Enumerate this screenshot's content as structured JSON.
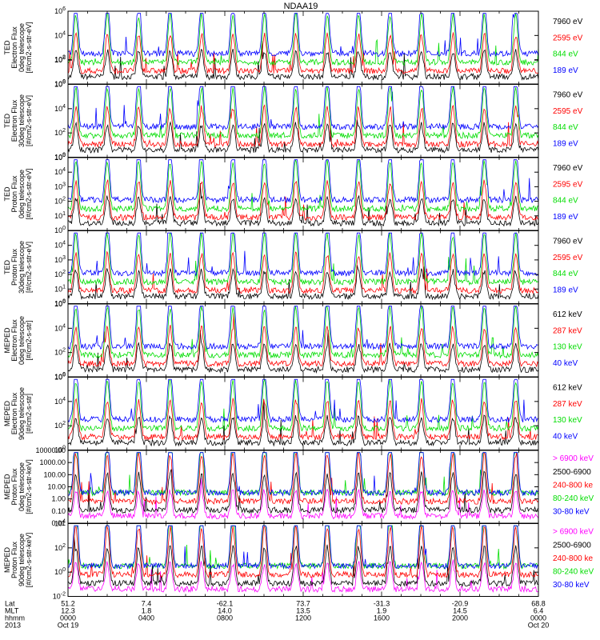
{
  "figure_title": "NDAA19",
  "chart_data": {
    "type": "line",
    "title": "NDAA19",
    "x_range_hours": [
      0,
      24
    ],
    "panels": [
      {
        "ylabel": [
          "TED",
          "Electron Flux",
          "0deg telescope",
          "[#/cm2-s-str-eV]"
        ],
        "y_scale": "log",
        "ylim": [
          1,
          1000000
        ],
        "ticks": [
          {
            "base": "10",
            "exp": "0"
          },
          {
            "base": "10",
            "exp": "2"
          },
          {
            "base": "10",
            "exp": "4"
          },
          {
            "base": "10",
            "exp": "6"
          },
          {
            "base": "10",
            "exp": "8"
          }
        ],
        "series": [
          {
            "name": "7960 eV",
            "color": "#000000"
          },
          {
            "name": "2595 eV",
            "color": "#ff0000"
          },
          {
            "name": "844 eV",
            "color": "#00dd00"
          },
          {
            "name": "189 eV",
            "color": "#0000ff"
          }
        ]
      },
      {
        "ylabel": [
          "TED",
          "Electron Flux",
          "30deg telescope",
          "[#/cm2-s-str-eV]"
        ],
        "y_scale": "log",
        "ylim": [
          1,
          1000000
        ],
        "ticks": [
          {
            "base": "10",
            "exp": "0"
          },
          {
            "base": "10",
            "exp": "2"
          },
          {
            "base": "10",
            "exp": "4"
          },
          {
            "base": "10",
            "exp": "6"
          },
          {
            "base": "10",
            "exp": "8"
          }
        ],
        "series": [
          {
            "name": "7960 eV",
            "color": "#000000"
          },
          {
            "name": "2595 eV",
            "color": "#ff0000"
          },
          {
            "name": "844 eV",
            "color": "#00dd00"
          },
          {
            "name": "189 eV",
            "color": "#0000ff"
          }
        ]
      },
      {
        "ylabel": [
          "TED",
          "Proton Flux",
          "0deg telescope",
          "[#/cm2-s-str-eV]"
        ],
        "y_scale": "log",
        "ylim": [
          1,
          100000
        ],
        "ticks": [
          {
            "base": "10",
            "exp": "0"
          },
          {
            "base": "10",
            "exp": "1"
          },
          {
            "base": "10",
            "exp": "2"
          },
          {
            "base": "10",
            "exp": "3"
          },
          {
            "base": "10",
            "exp": "4"
          },
          {
            "base": "10",
            "exp": "5"
          }
        ],
        "series": [
          {
            "name": "7960 eV",
            "color": "#000000"
          },
          {
            "name": "2595 eV",
            "color": "#ff0000"
          },
          {
            "name": "844 eV",
            "color": "#00dd00"
          },
          {
            "name": "189 eV",
            "color": "#0000ff"
          }
        ]
      },
      {
        "ylabel": [
          "TED",
          "Proton Flux",
          "30deg telescope",
          "[#/cm2-s-str-eV]"
        ],
        "y_scale": "log",
        "ylim": [
          1,
          100000
        ],
        "ticks": [
          {
            "base": "10",
            "exp": "0"
          },
          {
            "base": "10",
            "exp": "1"
          },
          {
            "base": "10",
            "exp": "2"
          },
          {
            "base": "10",
            "exp": "3"
          },
          {
            "base": "10",
            "exp": "4"
          }
        ],
        "series": [
          {
            "name": "7960 eV",
            "color": "#000000"
          },
          {
            "name": "2595 eV",
            "color": "#ff0000"
          },
          {
            "name": "844 eV",
            "color": "#00dd00"
          },
          {
            "name": "189 eV",
            "color": "#0000ff"
          }
        ]
      },
      {
        "ylabel": [
          "MEPED",
          "Electron Flux",
          "0deg telescope",
          "[#/cm2-s-str]"
        ],
        "y_scale": "log",
        "ylim": [
          1,
          1000000
        ],
        "ticks": [
          {
            "base": "10",
            "exp": "0"
          },
          {
            "base": "10",
            "exp": "2"
          },
          {
            "base": "10",
            "exp": "4"
          },
          {
            "base": "10",
            "exp": "6"
          }
        ],
        "series": [
          {
            "name": "612 keV",
            "color": "#000000"
          },
          {
            "name": "287 keV",
            "color": "#ff0000"
          },
          {
            "name": "130 keV",
            "color": "#00dd00"
          },
          {
            "name": "40 keV",
            "color": "#0000ff"
          }
        ]
      },
      {
        "ylabel": [
          "MEPED",
          "Electron Flux",
          "90deg telescope",
          "[#/cm2-s-str]"
        ],
        "y_scale": "log",
        "ylim": [
          1,
          1000000
        ],
        "ticks": [
          {
            "base": "10",
            "exp": "0"
          },
          {
            "base": "10",
            "exp": "2"
          },
          {
            "base": "10",
            "exp": "4"
          },
          {
            "base": "10",
            "exp": "6"
          }
        ],
        "series": [
          {
            "name": "612 keV",
            "color": "#000000"
          },
          {
            "name": "287 keV",
            "color": "#ff0000"
          },
          {
            "name": "130 keV",
            "color": "#00dd00"
          },
          {
            "name": "40 keV",
            "color": "#0000ff"
          }
        ]
      },
      {
        "ylabel": [
          "MEPED",
          "Proton Flux",
          "0deg telescope",
          "[#/cm2-s-str-keV]"
        ],
        "y_scale": "log",
        "ylim": [
          0.01,
          10000
        ],
        "ticks": [
          {
            "base": "0.01",
            "exp": ""
          },
          {
            "base": "0.10",
            "exp": ""
          },
          {
            "base": "1.00",
            "exp": ""
          },
          {
            "base": "10.00",
            "exp": ""
          },
          {
            "base": "100.00",
            "exp": ""
          },
          {
            "base": "1000.00",
            "exp": ""
          },
          {
            "base": "10000.00",
            "exp": ""
          }
        ],
        "series": [
          {
            "name": "> 6900 keV",
            "color": "#ff00ff"
          },
          {
            "name": "2500-6900",
            "color": "#000000"
          },
          {
            "name": "240-800 ke",
            "color": "#ff0000"
          },
          {
            "name": "80-240 keV",
            "color": "#00dd00"
          },
          {
            "name": "30-80 keV",
            "color": "#0000ff"
          }
        ]
      },
      {
        "ylabel": [
          "MEPED",
          "Proton Flux",
          "90deg telescope",
          "[#/cm2-s-str-keV]"
        ],
        "y_scale": "log",
        "ylim": [
          0.01,
          10000
        ],
        "ticks": [
          {
            "base": "10",
            "exp": "-2"
          },
          {
            "base": "10",
            "exp": "0"
          },
          {
            "base": "10",
            "exp": "2"
          },
          {
            "base": "10",
            "exp": "4"
          }
        ],
        "series": [
          {
            "name": "> 6900 keV",
            "color": "#ff00ff"
          },
          {
            "name": "2500-6900",
            "color": "#000000"
          },
          {
            "name": "240-800 ke",
            "color": "#ff0000"
          },
          {
            "name": "80-240 keV",
            "color": "#00dd00"
          },
          {
            "name": "30-80 keV",
            "color": "#0000ff"
          }
        ]
      }
    ],
    "x_axis": {
      "row_labels": [
        "Lat",
        "MLT",
        "hhmm",
        "2013"
      ],
      "ticks": [
        {
          "hour": 0,
          "lat": "51.2",
          "mlt": "12.3",
          "hhmm": "0000",
          "date": "Oct 19"
        },
        {
          "hour": 4,
          "lat": "7.4",
          "mlt": "1.8",
          "hhmm": "0400",
          "date": ""
        },
        {
          "hour": 8,
          "lat": "-62.1",
          "mlt": "14.0",
          "hhmm": "0800",
          "date": ""
        },
        {
          "hour": 12,
          "lat": "73.7",
          "mlt": "13.5",
          "hhmm": "1200",
          "date": ""
        },
        {
          "hour": 16,
          "lat": "-31.3",
          "mlt": "1.9",
          "hhmm": "1600",
          "date": ""
        },
        {
          "hour": 20,
          "lat": "-20.9",
          "mlt": "14.5",
          "hhmm": "2000",
          "date": ""
        },
        {
          "hour": 24,
          "lat": "68.8",
          "mlt": "6.4",
          "hhmm": "0000",
          "date": "Oct 20"
        }
      ]
    }
  }
}
